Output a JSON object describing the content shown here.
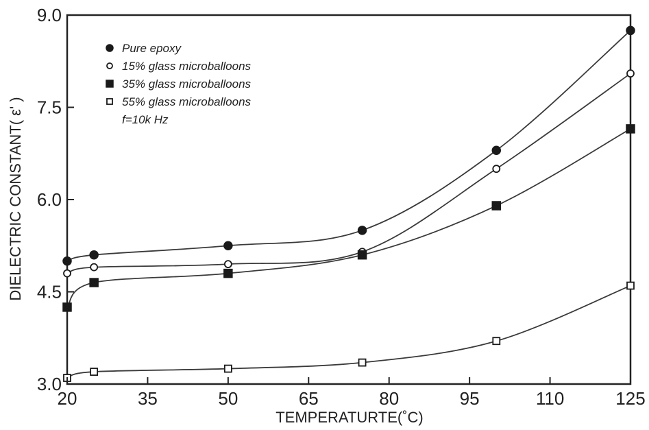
{
  "chart_data": {
    "type": "line",
    "xlabel": "TEMPERATURTE(˚C)",
    "ylabel": "DIELECTRIC CONSTANT( ε' )",
    "xlim": [
      20,
      125
    ],
    "ylim": [
      3.0,
      9.0
    ],
    "x_ticks": [
      "20",
      "35",
      "50",
      "65",
      "80",
      "95",
      "110",
      "125"
    ],
    "y_ticks": [
      "3.0",
      "4.5",
      "6.0",
      "7.5",
      "9.0"
    ],
    "grid": false,
    "legend_position": "top-left",
    "annotation": "f=10k Hz",
    "series": [
      {
        "name": "Pure epoxy",
        "marker": "filled-circle",
        "x": [
          20,
          25,
          50,
          75,
          100,
          125
        ],
        "y": [
          5.0,
          5.1,
          5.25,
          5.5,
          6.8,
          8.75
        ]
      },
      {
        "name": "15% glass microballoons",
        "marker": "open-circle",
        "x": [
          20,
          25,
          50,
          75,
          100,
          125
        ],
        "y": [
          4.8,
          4.9,
          4.95,
          5.15,
          6.5,
          8.05
        ]
      },
      {
        "name": "35% glass microballoons",
        "marker": "filled-square",
        "x": [
          20,
          25,
          50,
          75,
          100,
          125
        ],
        "y": [
          4.25,
          4.65,
          4.8,
          5.1,
          5.9,
          7.15
        ]
      },
      {
        "name": "55% glass microballoons",
        "marker": "open-square",
        "x": [
          20,
          25,
          50,
          75,
          100,
          125
        ],
        "y": [
          3.1,
          3.2,
          3.25,
          3.35,
          3.7,
          4.6
        ]
      }
    ],
    "colors": {
      "line": "#3a3a3a",
      "marker": "#1a1a1a",
      "axis": "#222222"
    }
  }
}
